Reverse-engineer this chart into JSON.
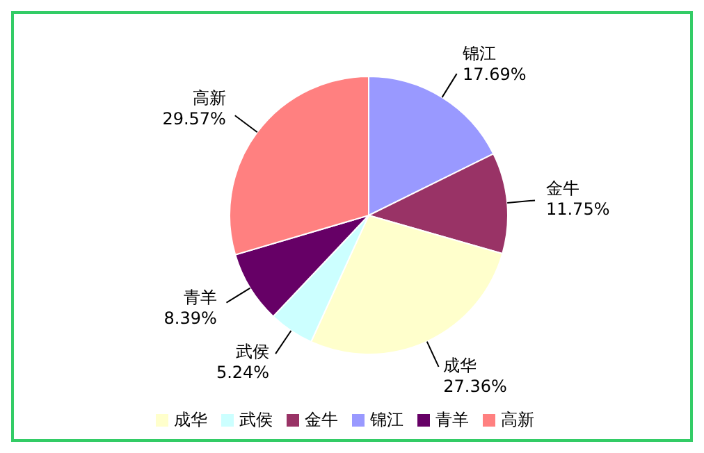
{
  "chart_data": {
    "type": "pie",
    "categories": [
      "锦江",
      "金牛",
      "成华",
      "武侯",
      "青羊",
      "高新"
    ],
    "values": [
      17.69,
      11.75,
      27.36,
      5.24,
      8.39,
      29.57
    ],
    "colors": [
      "#9999ff",
      "#993366",
      "#ffffcc",
      "#ccffff",
      "#660066",
      "#ff8080"
    ],
    "value_labels": [
      "17.69%",
      "11.75%",
      "27.36%",
      "5.24%",
      "8.39%",
      "29.57%"
    ],
    "legend": "bottom"
  }
}
